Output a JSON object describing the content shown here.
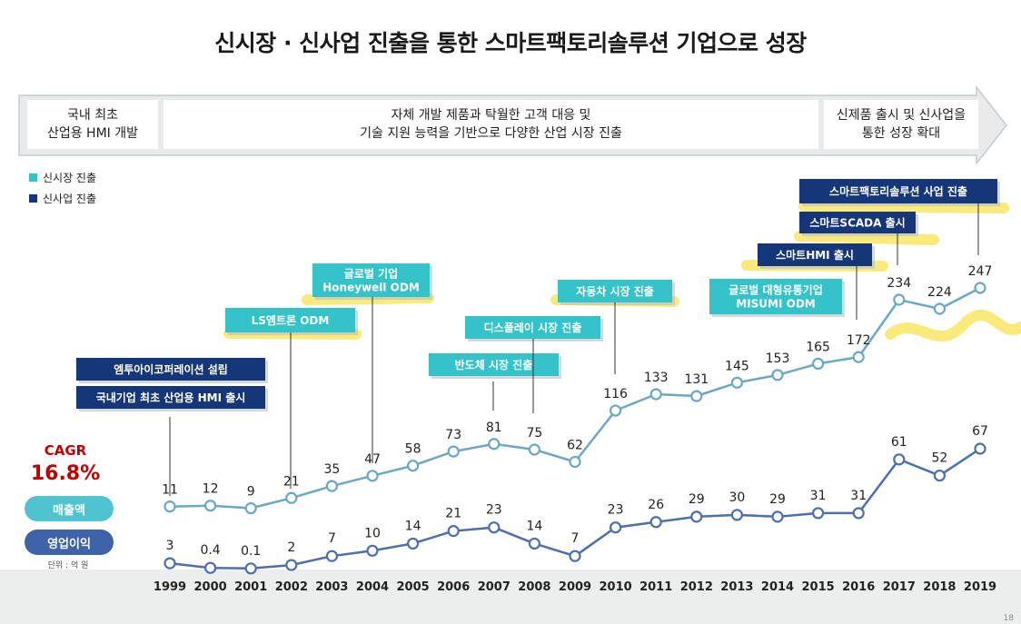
{
  "title": "신시장 · 신사업 진출을 통한 스마트팩토리솔루션 기업으로 성장",
  "banner": {
    "seg1": [
      "국내 최초",
      "산업용 HMI 개발"
    ],
    "seg2": [
      "자체 개발 제품과 탁월한 고객 대응 및",
      "기술 지원 능력을 기반으로 다양한 산업 시장 진출"
    ],
    "seg3": [
      "신제품 출시 및 신사업을",
      "통한 성장 확대"
    ]
  },
  "legend": {
    "new_market": "신시장 진출",
    "new_business": "신사업 진출"
  },
  "colors": {
    "teal": "#34c3c8",
    "navy": "#15377a",
    "revenue_line": "#6aa8c4",
    "op_line": "#4d6fae",
    "highlight": "#f7e34f",
    "cagr": "#c00000"
  },
  "cagr": {
    "label": "CAGR",
    "value": "16.8%"
  },
  "pills": {
    "revenue": "매출액",
    "op_income": "영업이익"
  },
  "unit": "단위 : 억 원",
  "page_number": "18",
  "chart_data": {
    "type": "line",
    "x": [
      "1999",
      "2000",
      "2001",
      "2002",
      "2003",
      "2004",
      "2005",
      "2006",
      "2007",
      "2008",
      "2009",
      "2010",
      "2011",
      "2012",
      "2013",
      "2014",
      "2015",
      "2016",
      "2017",
      "2018",
      "2019"
    ],
    "series": [
      {
        "name": "매출액",
        "values": [
          11,
          12,
          9,
          21,
          35,
          47,
          58,
          73,
          81,
          75,
          62,
          116,
          133,
          131,
          145,
          153,
          165,
          172,
          234,
          224,
          247
        ]
      },
      {
        "name": "영업이익",
        "values": [
          3,
          0.4,
          0.1,
          2,
          7,
          10,
          14,
          21,
          23,
          14,
          7,
          23,
          26,
          29,
          30,
          29,
          31,
          31,
          61,
          52,
          67
        ]
      }
    ],
    "series_labels": [
      [
        "11",
        "12",
        "9",
        "21",
        "35",
        "47",
        "58",
        "73",
        "81",
        "75",
        "62",
        "116",
        "133",
        "131",
        "145",
        "153",
        "165",
        "172",
        "234",
        "224",
        "247"
      ],
      [
        "3",
        "0.4",
        "0.1",
        "2",
        "7",
        "10",
        "14",
        "21",
        "23",
        "14",
        "7",
        "23",
        "26",
        "29",
        "30",
        "29",
        "31",
        "31",
        "61",
        "52",
        "67"
      ]
    ],
    "title": "",
    "xlabel": "",
    "ylabel": "단위 : 억 원",
    "annotations": [
      {
        "lines": [
          "엠투아이코퍼레이션 설립"
        ],
        "type": "new_business",
        "year": "1999"
      },
      {
        "lines": [
          "국내기업 최초 산업용 HMI 출시"
        ],
        "type": "new_business",
        "year": "1999"
      },
      {
        "lines": [
          "LS엠트론 ODM"
        ],
        "type": "new_market",
        "year": "2002"
      },
      {
        "lines": [
          "글로벌 기업",
          "Honeywell ODM"
        ],
        "type": "new_market",
        "year": "2004"
      },
      {
        "lines": [
          "반도체 시장 진출"
        ],
        "type": "new_market",
        "year": "2007"
      },
      {
        "lines": [
          "디스플레이 시장 진출"
        ],
        "type": "new_market",
        "year": "2008"
      },
      {
        "lines": [
          "자동차 시장 진출"
        ],
        "type": "new_market",
        "year": "2010"
      },
      {
        "lines": [
          "글로벌 대형유통기업",
          "MISUMI ODM"
        ],
        "type": "new_market",
        "year": "2016"
      },
      {
        "lines": [
          "스마트HMI 출시"
        ],
        "type": "new_business",
        "year": "2016"
      },
      {
        "lines": [
          "스마트SCADA 출시"
        ],
        "type": "new_business",
        "year": "2017"
      },
      {
        "lines": [
          "스마트팩토리솔루션 사업 진출"
        ],
        "type": "new_business",
        "year": "2019"
      }
    ]
  }
}
